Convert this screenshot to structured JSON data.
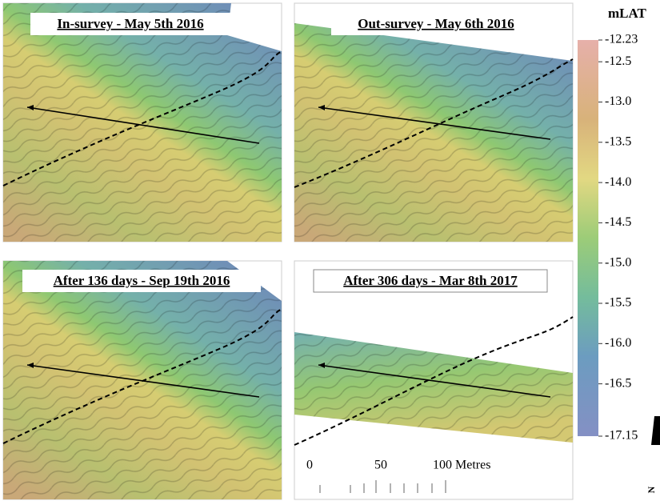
{
  "panels": [
    {
      "title": "In-survey - May 5th 2016"
    },
    {
      "title": "Out-survey - May 6th 2016"
    },
    {
      "title": "After 136 days - Sep 19th 2016"
    },
    {
      "title": "After 306 days - Mar 8th 2017"
    }
  ],
  "legend": {
    "title": "mLAT",
    "lim": [
      -12.23,
      -17.15
    ],
    "ticks": [
      -12.23,
      -12.5,
      {
        "value": -13,
        "label": "-13.0"
      },
      -13.5,
      {
        "value": -14,
        "label": "-14.0"
      },
      -14.5,
      {
        "value": -15,
        "label": "-15.0"
      },
      -15.5,
      {
        "value": -16,
        "label": "-16.0"
      },
      -16.5,
      -17.15
    ]
  },
  "scale_bar": {
    "labels": [
      "0",
      "50",
      "100 Metres"
    ]
  },
  "north_arrow": "N"
}
